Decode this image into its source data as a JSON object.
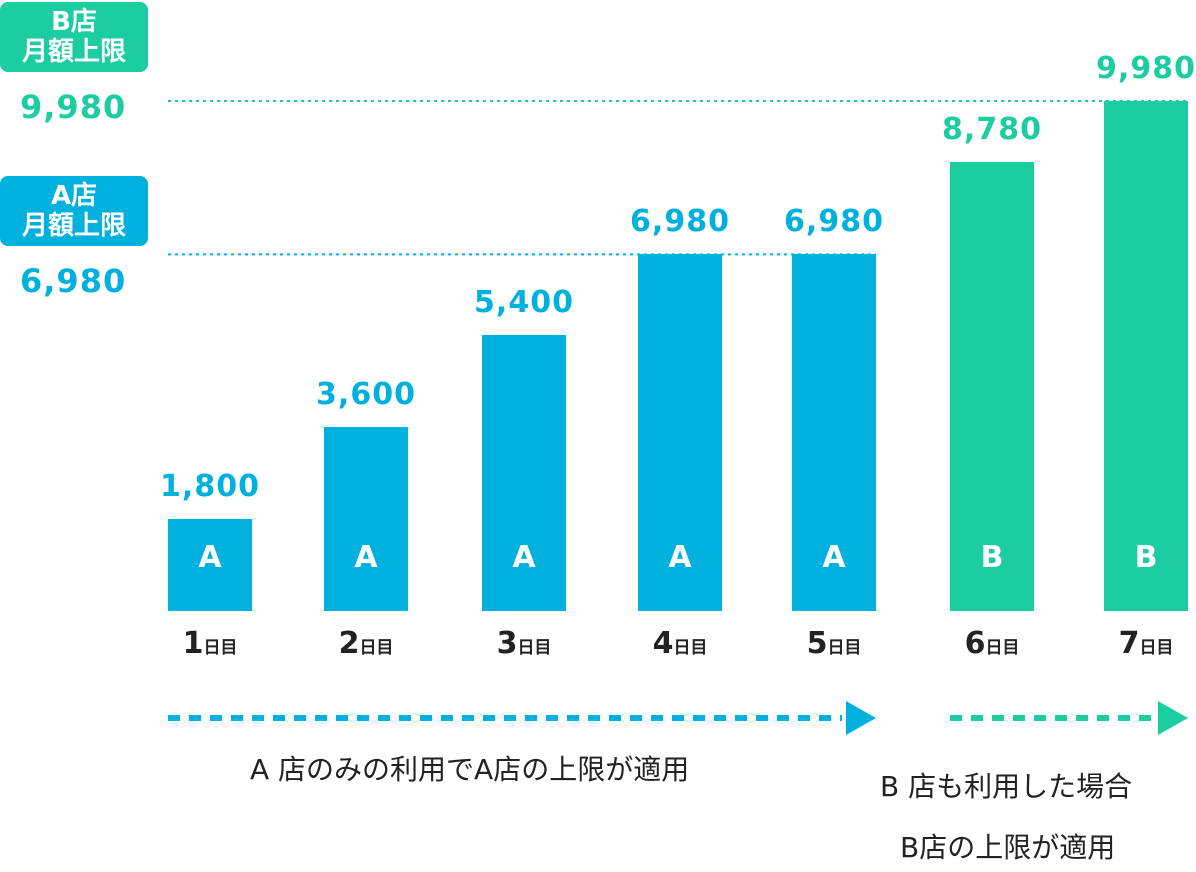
{
  "chart_data": {
    "type": "bar",
    "categories": [
      "1日目",
      "2日目",
      "3日目",
      "4日目",
      "5日目",
      "6日目",
      "7日目"
    ],
    "category_parts": [
      {
        "num": "1",
        "unit": "日目"
      },
      {
        "num": "2",
        "unit": "日目"
      },
      {
        "num": "3",
        "unit": "日目"
      },
      {
        "num": "4",
        "unit": "日目"
      },
      {
        "num": "5",
        "unit": "日目"
      },
      {
        "num": "6",
        "unit": "日目"
      },
      {
        "num": "7",
        "unit": "日目"
      }
    ],
    "values": [
      1800,
      3600,
      5400,
      6980,
      6980,
      8780,
      9980
    ],
    "value_labels": [
      "1,800",
      "3,600",
      "5,400",
      "6,980",
      "6,980",
      "8,780",
      "9,980"
    ],
    "bar_letters": [
      "A",
      "A",
      "A",
      "A",
      "A",
      "B",
      "B"
    ],
    "ylim": [
      0,
      9980
    ],
    "grid": false,
    "reference_lines": [
      {
        "value": 6980,
        "badge_line1": "A店",
        "badge_line2": "月額上限",
        "value_label": "6,980",
        "color": "#00b0dd"
      },
      {
        "value": 9980,
        "badge_line1": "B店",
        "badge_line2": "月額上限",
        "value_label": "9,980",
        "color": "#1ccda2"
      }
    ],
    "colors": {
      "A": "#00b0dd",
      "B": "#1ccda2"
    }
  },
  "captions": {
    "a_range": "A 店のみの利用でA店の上限が適用",
    "b_range_line1": "B 店も利用した場合",
    "b_range_line2": "B店の上限が適用"
  }
}
